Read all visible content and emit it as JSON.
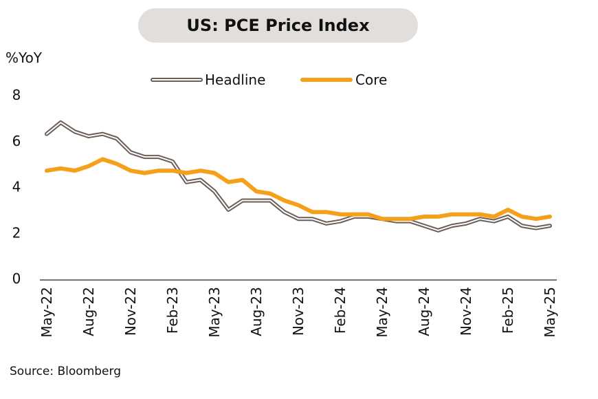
{
  "chart_data": {
    "type": "line",
    "title": "US: PCE Price Index",
    "unit_label": "%YoY",
    "source": "Source: Bloomberg",
    "ylim": [
      0,
      8
    ],
    "yticks": [
      0,
      2,
      4,
      6,
      8
    ],
    "grid": false,
    "legend_position": "top",
    "x": [
      "May-22",
      "Jun-22",
      "Jul-22",
      "Aug-22",
      "Sep-22",
      "Oct-22",
      "Nov-22",
      "Dec-22",
      "Jan-23",
      "Feb-23",
      "Mar-23",
      "Apr-23",
      "May-23",
      "Jun-23",
      "Jul-23",
      "Aug-23",
      "Sep-23",
      "Oct-23",
      "Nov-23",
      "Dec-23",
      "Jan-24",
      "Feb-24",
      "Mar-24",
      "Apr-24",
      "May-24",
      "Jun-24",
      "Jul-24",
      "Aug-24",
      "Sep-24",
      "Oct-24",
      "Nov-24",
      "Dec-24",
      "Jan-25",
      "Feb-25",
      "Mar-25",
      "Apr-25",
      "May-25"
    ],
    "xtick_labels": [
      "May-22",
      "Aug-22",
      "Nov-22",
      "Feb-23",
      "May-23",
      "Aug-23",
      "Nov-23",
      "Feb-24",
      "May-24",
      "Aug-24",
      "Nov-24",
      "Feb-25",
      "May-25"
    ],
    "series": [
      {
        "name": "Headline",
        "color": "#6b5e59",
        "style": "double-line",
        "values": [
          6.3,
          6.8,
          6.4,
          6.2,
          6.3,
          6.1,
          5.5,
          5.3,
          5.3,
          5.1,
          4.2,
          4.3,
          3.8,
          3.0,
          3.4,
          3.4,
          3.4,
          2.9,
          2.6,
          2.6,
          2.4,
          2.5,
          2.7,
          2.7,
          2.6,
          2.5,
          2.5,
          2.3,
          2.1,
          2.3,
          2.4,
          2.6,
          2.5,
          2.7,
          2.3,
          2.2,
          2.3
        ]
      },
      {
        "name": "Core",
        "color": "#f5a01a",
        "style": "solid",
        "values": [
          4.7,
          4.8,
          4.7,
          4.9,
          5.2,
          5.0,
          4.7,
          4.6,
          4.7,
          4.7,
          4.6,
          4.7,
          4.6,
          4.2,
          4.3,
          3.8,
          3.7,
          3.4,
          3.2,
          2.9,
          2.9,
          2.8,
          2.8,
          2.8,
          2.6,
          2.6,
          2.6,
          2.7,
          2.7,
          2.8,
          2.8,
          2.8,
          2.7,
          3.0,
          2.7,
          2.6,
          2.7
        ]
      }
    ]
  }
}
